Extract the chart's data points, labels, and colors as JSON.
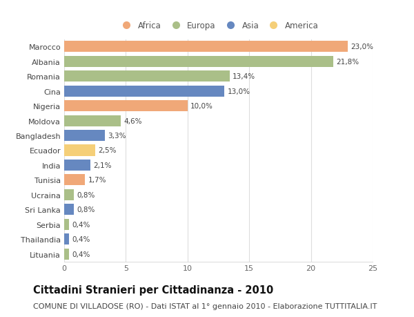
{
  "categories": [
    "Marocco",
    "Albania",
    "Romania",
    "Cina",
    "Nigeria",
    "Moldova",
    "Bangladesh",
    "Ecuador",
    "India",
    "Tunisia",
    "Ucraina",
    "Sri Lanka",
    "Serbia",
    "Thailandia",
    "Lituania"
  ],
  "values": [
    23.0,
    21.8,
    13.4,
    13.0,
    10.0,
    4.6,
    3.3,
    2.5,
    2.1,
    1.7,
    0.8,
    0.8,
    0.4,
    0.4,
    0.4
  ],
  "labels": [
    "23,0%",
    "21,8%",
    "13,4%",
    "13,0%",
    "10,0%",
    "4,6%",
    "3,3%",
    "2,5%",
    "2,1%",
    "1,7%",
    "0,8%",
    "0,8%",
    "0,4%",
    "0,4%",
    "0,4%"
  ],
  "continents": [
    "Africa",
    "Europa",
    "Europa",
    "Asia",
    "Africa",
    "Europa",
    "Asia",
    "America",
    "Asia",
    "Africa",
    "Europa",
    "Asia",
    "Europa",
    "Asia",
    "Europa"
  ],
  "continent_colors": {
    "Africa": "#F0A878",
    "Europa": "#AABF88",
    "Asia": "#6688C0",
    "America": "#F5CF78"
  },
  "legend_order": [
    "Africa",
    "Europa",
    "Asia",
    "America"
  ],
  "title": "Cittadini Stranieri per Cittadinanza - 2010",
  "subtitle": "COMUNE DI VILLADOSE (RO) - Dati ISTAT al 1° gennaio 2010 - Elaborazione TUTTITALIA.IT",
  "xlim": [
    0,
    25
  ],
  "xticks": [
    0,
    5,
    10,
    15,
    20,
    25
  ],
  "background_color": "#ffffff",
  "grid_color": "#dddddd",
  "bar_height": 0.75,
  "title_fontsize": 10.5,
  "subtitle_fontsize": 8.0,
  "label_fontsize": 7.5,
  "tick_fontsize": 8.0,
  "legend_fontsize": 8.5
}
